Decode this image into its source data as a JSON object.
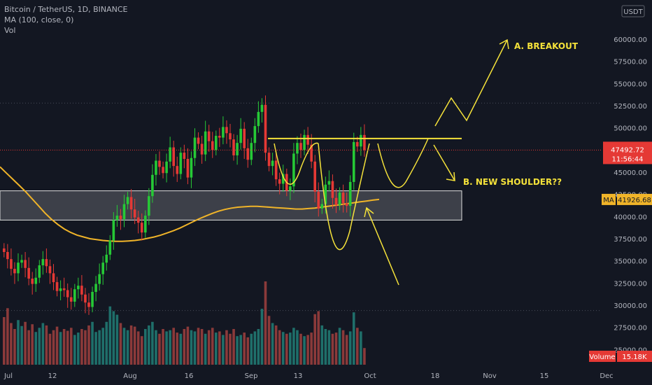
{
  "header": {
    "title": "Bitcoin / TetherUS, 1D, BINANCE",
    "indicator": "MA (100, close, 0)",
    "volume_label": "Vol"
  },
  "currency": "USDT",
  "price_label": "47492.72",
  "countdown": "11:56:44",
  "ma_label": "MA",
  "ma_value": "41926.68",
  "volume_badge_label": "Volume",
  "volume_badge_value": "15.18K",
  "annotations": {
    "breakout": "A. BREAKOUT",
    "shoulder": "B. NEW SHOULDER??"
  },
  "colors": {
    "background": "#131722",
    "up": "#26a69a",
    "up_candle": "#26c936",
    "down_candle": "#e53935",
    "vol_up": "#1f6f6a",
    "vol_down": "#8b3a3a",
    "ma": "#f0b429",
    "annotation": "#f5e23a",
    "price_tag": "#e53935",
    "ma_tag": "#f0b429",
    "volume_tag": "#e53935"
  },
  "chart_data": {
    "type": "candlestick",
    "x_ticks": [
      "Jul",
      "12",
      "Aug",
      "16",
      "Sep",
      "13",
      "Oct",
      "18",
      "Nov",
      "15",
      "Dec"
    ],
    "y_ticks": [
      "60000.00",
      "57500.00",
      "55000.00",
      "52500.00",
      "50000.00",
      "45000.00",
      "42500.00",
      "40000.00",
      "37500.00",
      "35000.00",
      "32500.00",
      "30000.00",
      "27500.00",
      "25000.00"
    ],
    "ylim": [
      24000,
      62500
    ],
    "hlines": [
      52800,
      29400
    ],
    "neckline": 48800,
    "support_zone": [
      39600,
      42900
    ],
    "current_price": 47492.72,
    "ma_current": 41926.68,
    "series_closes": [
      36000,
      35200,
      34100,
      33600,
      34800,
      35100,
      34200,
      33000,
      32400,
      33100,
      34500,
      35200,
      34400,
      33600,
      32600,
      31600,
      31900,
      31700,
      30900,
      30400,
      31800,
      32200,
      31200,
      30300,
      29800,
      31500,
      32400,
      33500,
      34800,
      35700,
      37300,
      39600,
      40100,
      39700,
      41400,
      42200,
      40800,
      39900,
      39300,
      38200,
      40100,
      42300,
      44700,
      46300,
      45600,
      44900,
      46200,
      47800,
      45700,
      44800,
      47200,
      46500,
      44400,
      46600,
      48900,
      48200,
      47000,
      49600,
      48500,
      47500,
      49100,
      48900,
      50100,
      49400,
      48700,
      46900,
      48300,
      49900,
      47700,
      46400,
      48300,
      50200,
      51800,
      52600,
      47200,
      45700,
      46300,
      44200,
      43700,
      44800,
      42900,
      43400,
      47100,
      48300,
      47500,
      49200,
      48100,
      46200,
      42800,
      40900,
      41400,
      43600,
      44000,
      42100,
      41300,
      42700,
      41500,
      41200,
      43900,
      48400,
      47900,
      49200,
      47493
    ],
    "series_opens": [
      36400,
      36000,
      35200,
      34100,
      33600,
      34800,
      35100,
      34200,
      33000,
      32400,
      33100,
      34500,
      35200,
      34400,
      33600,
      32600,
      31600,
      31900,
      31700,
      30900,
      30400,
      31800,
      32200,
      31200,
      30300,
      29800,
      31500,
      32400,
      33500,
      34800,
      35700,
      37300,
      39600,
      40100,
      39700,
      41400,
      42200,
      40800,
      39900,
      39300,
      38200,
      40100,
      42300,
      44700,
      46300,
      45600,
      44900,
      46200,
      47800,
      45700,
      44800,
      47200,
      46500,
      44400,
      46600,
      48900,
      48200,
      47000,
      49600,
      48500,
      47500,
      49100,
      48900,
      50100,
      49400,
      48700,
      46900,
      48300,
      49900,
      47700,
      46400,
      48300,
      50200,
      51800,
      52600,
      47200,
      45700,
      46300,
      44200,
      43700,
      44800,
      42900,
      43400,
      47100,
      48300,
      47500,
      49200,
      48100,
      46200,
      42800,
      40900,
      41400,
      43600,
      44000,
      42100,
      41300,
      42700,
      41500,
      41200,
      43900,
      48400,
      47900,
      49200
    ],
    "volumes": [
      80,
      95,
      70,
      60,
      75,
      65,
      72,
      58,
      68,
      55,
      62,
      70,
      66,
      52,
      58,
      64,
      55,
      60,
      57,
      62,
      50,
      54,
      60,
      58,
      66,
      72,
      55,
      58,
      62,
      72,
      98,
      90,
      84,
      70,
      62,
      58,
      66,
      64,
      56,
      48,
      60,
      66,
      72,
      58,
      52,
      60,
      56,
      58,
      62,
      54,
      52,
      60,
      64,
      58,
      56,
      62,
      60,
      52,
      58,
      62,
      54,
      56,
      50,
      58,
      52,
      60,
      48,
      50,
      54,
      46,
      52,
      56,
      60,
      94,
      140,
      82,
      70,
      66,
      58,
      55,
      52,
      54,
      62,
      58,
      52,
      48,
      50,
      54,
      85,
      90,
      66,
      60,
      58,
      52,
      54,
      62,
      58,
      50,
      56,
      88,
      62,
      56,
      28
    ],
    "ma_values": [
      45600,
      44900,
      44200,
      43500,
      42800,
      42000,
      41200,
      40400,
      39700,
      39100,
      38600,
      38200,
      37900,
      37700,
      37500,
      37400,
      37300,
      37250,
      37200,
      37200,
      37250,
      37300,
      37400,
      37550,
      37700,
      37900,
      38150,
      38400,
      38700,
      39050,
      39400,
      39750,
      40050,
      40350,
      40600,
      40800,
      40950,
      41050,
      41100,
      41150,
      41150,
      41100,
      41050,
      41000,
      40950,
      40900,
      40850,
      40850,
      40900,
      40950,
      41050,
      41150,
      41250,
      41350,
      41450,
      41550,
      41650,
      41750,
      41850,
      41926
    ]
  }
}
